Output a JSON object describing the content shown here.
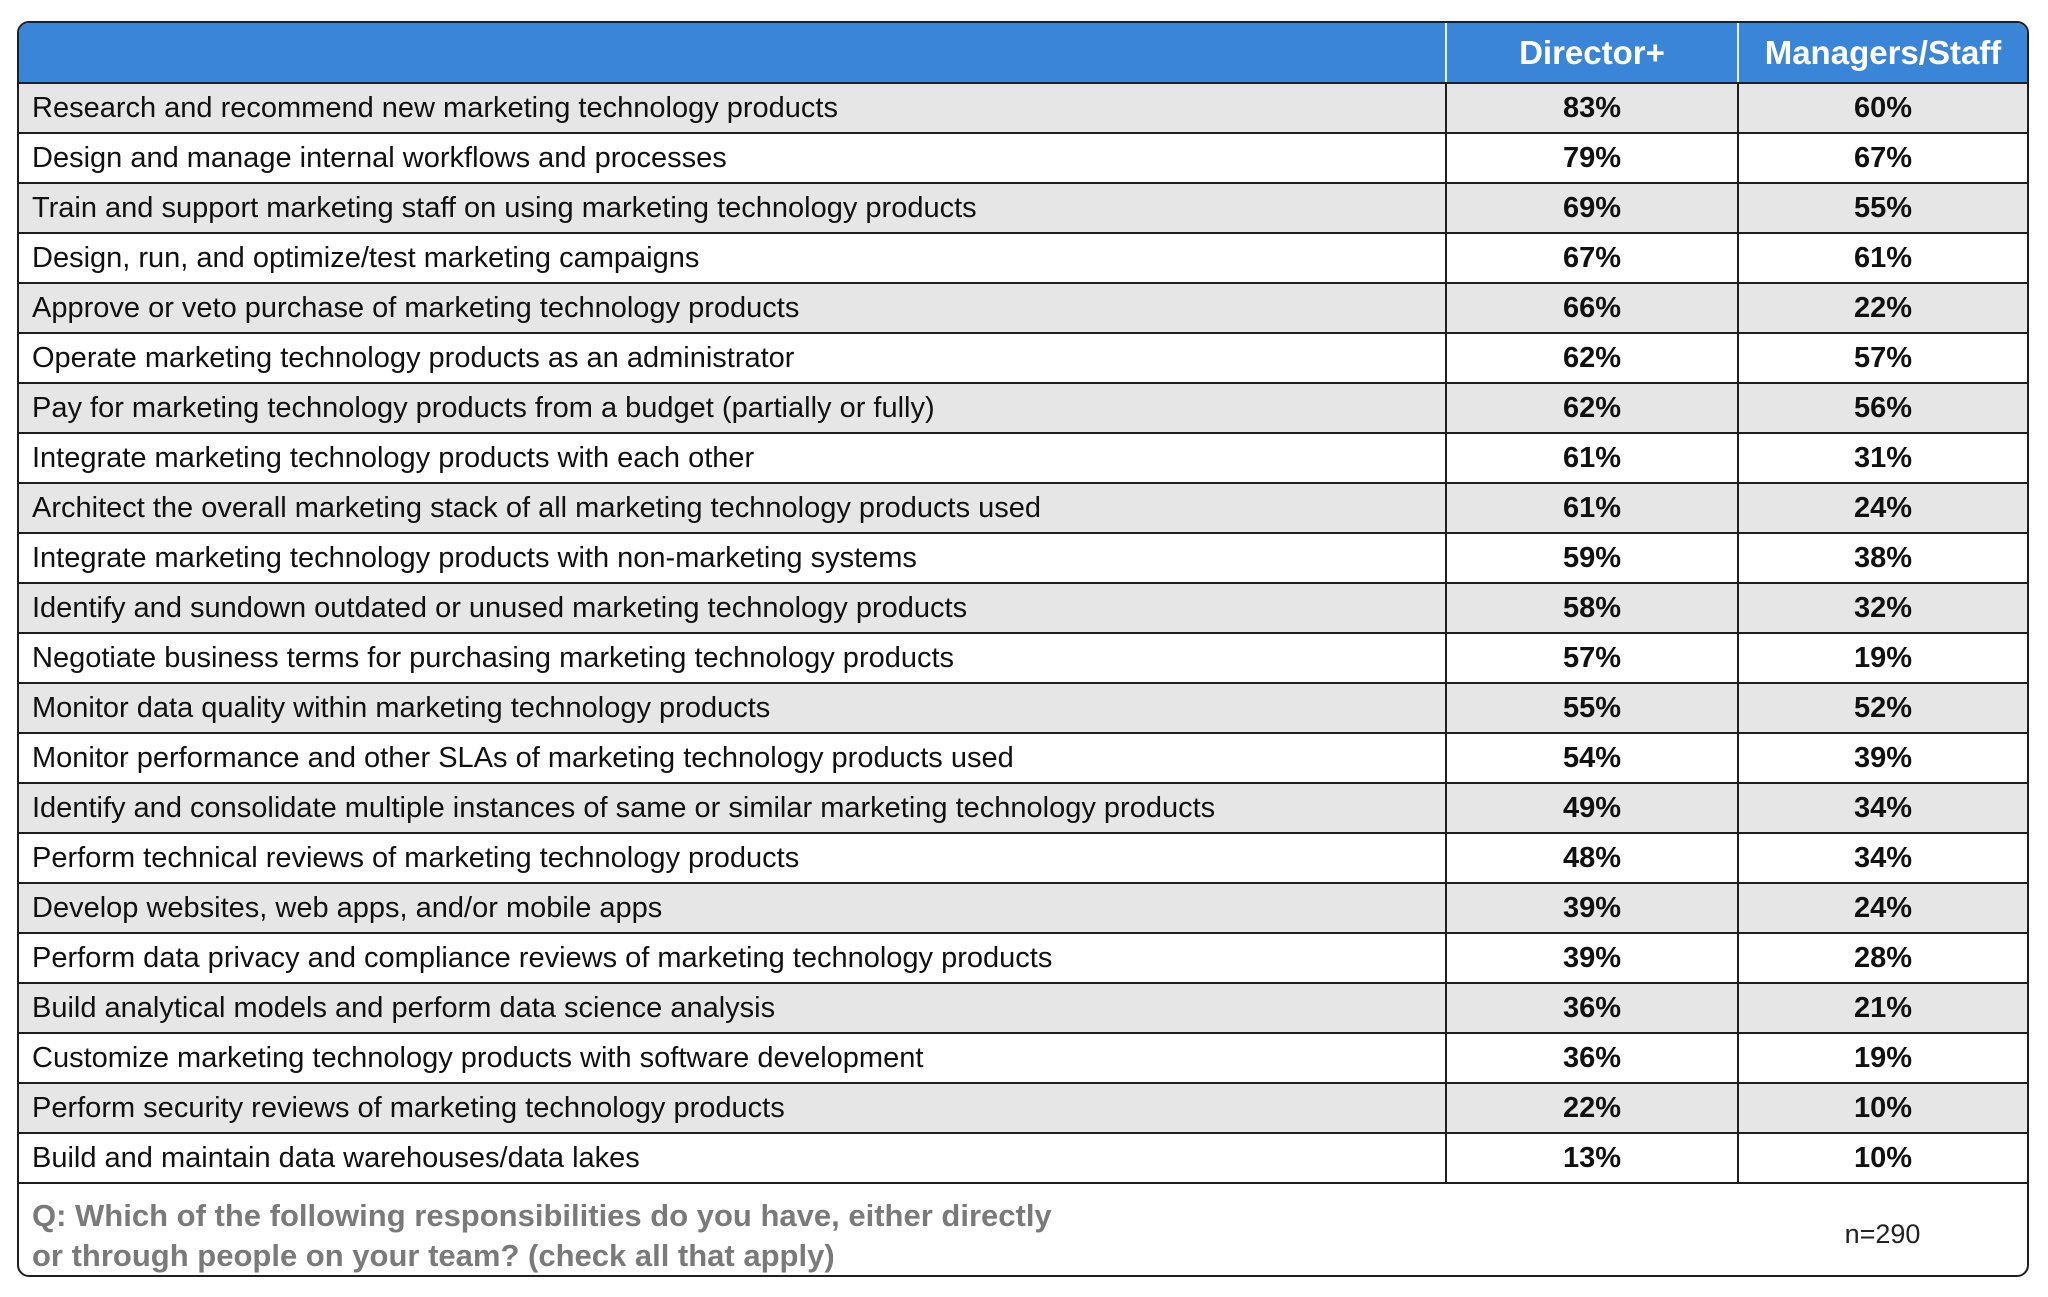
{
  "chart_data": {
    "type": "table",
    "columns": [
      "",
      "Director+",
      "Managers/Staff"
    ],
    "rows": [
      {
        "label": "Research and recommend new marketing technology products",
        "director": "83%",
        "managers": "60%"
      },
      {
        "label": "Design and manage internal workflows and processes",
        "director": "79%",
        "managers": "67%"
      },
      {
        "label": "Train and support marketing staff on using marketing technology products",
        "director": "69%",
        "managers": "55%"
      },
      {
        "label": "Design, run, and optimize/test marketing campaigns",
        "director": "67%",
        "managers": "61%"
      },
      {
        "label": "Approve or veto purchase of marketing technology products",
        "director": "66%",
        "managers": "22%"
      },
      {
        "label": "Operate marketing technology products as an administrator",
        "director": "62%",
        "managers": "57%"
      },
      {
        "label": "Pay for marketing technology products from a budget (partially or fully)",
        "director": "62%",
        "managers": "56%"
      },
      {
        "label": "Integrate marketing technology products with each other",
        "director": "61%",
        "managers": "31%"
      },
      {
        "label": "Architect the overall marketing stack of all marketing technology products used",
        "director": "61%",
        "managers": "24%"
      },
      {
        "label": "Integrate marketing technology products with non-marketing systems",
        "director": "59%",
        "managers": "38%"
      },
      {
        "label": "Identify and sundown outdated or unused marketing technology products",
        "director": "58%",
        "managers": "32%"
      },
      {
        "label": "Negotiate business terms for purchasing marketing technology products",
        "director": "57%",
        "managers": "19%"
      },
      {
        "label": "Monitor data quality within marketing technology products",
        "director": "55%",
        "managers": "52%"
      },
      {
        "label": "Monitor performance and other SLAs of marketing technology products used",
        "director": "54%",
        "managers": "39%"
      },
      {
        "label": "Identify and consolidate multiple instances of same or similar marketing technology products",
        "director": "49%",
        "managers": "34%"
      },
      {
        "label": "Perform technical reviews of marketing technology products",
        "director": "48%",
        "managers": "34%"
      },
      {
        "label": "Develop websites, web apps, and/or mobile apps",
        "director": "39%",
        "managers": "24%"
      },
      {
        "label": "Perform data privacy and compliance reviews of marketing technology products",
        "director": "39%",
        "managers": "28%"
      },
      {
        "label": "Build analytical models and perform data science analysis",
        "director": "36%",
        "managers": "21%"
      },
      {
        "label": "Customize marketing technology products with software development",
        "director": "36%",
        "managers": "19%"
      },
      {
        "label": "Perform security reviews of marketing technology products",
        "director": "22%",
        "managers": "10%"
      },
      {
        "label": "Build and maintain data warehouses/data lakes",
        "director": "13%",
        "managers": "10%"
      }
    ]
  },
  "footer": {
    "question_line1": "Q: Which of the following responsibilities do you have, either directly",
    "question_line2": "or through people on your team? (check all that apply)",
    "sample_size": "n=290"
  },
  "colors": {
    "header_bg": "#3a85d8",
    "shaded_row": "#e6e6e6",
    "question_text": "#7a7a7a"
  }
}
